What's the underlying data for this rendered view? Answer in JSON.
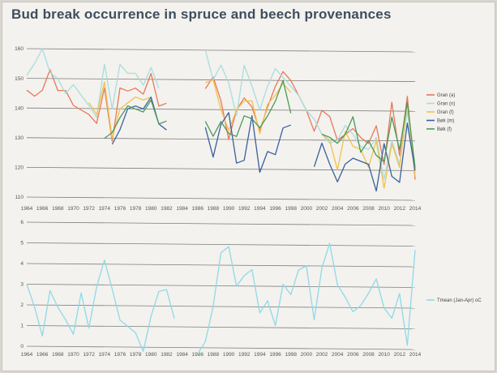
{
  "title": "Bud break occurrence in spruce and beech provenances",
  "chart_data": [
    {
      "type": "line",
      "title": "Bud break occurrence in spruce and beech provenances",
      "xlabel": "",
      "ylabel": "",
      "ylim": [
        110,
        160
      ],
      "yticks": [
        110,
        120,
        130,
        140,
        150,
        160
      ],
      "xticks": [
        1964,
        1966,
        1968,
        1970,
        1972,
        1974,
        1976,
        1978,
        1980,
        1982,
        1984,
        1986,
        1988,
        1990,
        1992,
        1994,
        1996,
        1998,
        2000,
        2002,
        2004,
        2006,
        2008,
        2010,
        2012,
        2014
      ],
      "legend_position": "right",
      "series": [
        {
          "name": "Gran (a)",
          "color": "#e8785a",
          "points": [
            [
              1964,
              146
            ],
            [
              1965,
              144
            ],
            [
              1966,
              146
            ],
            [
              1967,
              153
            ],
            [
              1968,
              146
            ],
            [
              1969,
              146
            ],
            [
              1970,
              141
            ],
            [
              1972,
              138
            ],
            [
              1973,
              135
            ],
            [
              1974,
              147
            ],
            [
              1975,
              129
            ],
            [
              1976,
              147
            ],
            [
              1977,
              146
            ],
            [
              1978,
              147
            ],
            [
              1979,
              145
            ],
            [
              1980,
              152
            ],
            [
              1981,
              141
            ],
            [
              1982,
              142
            ],
            [
              1987,
              147
            ],
            [
              1988,
              151
            ],
            [
              1989,
              143
            ],
            [
              1990,
              130
            ],
            [
              1991,
              140
            ],
            [
              1992,
              144
            ],
            [
              1993,
              141
            ],
            [
              1994,
              133
            ],
            [
              1995,
              141
            ],
            [
              1996,
              148
            ],
            [
              1997,
              153
            ],
            [
              1998,
              150
            ],
            [
              1999,
              145
            ],
            [
              2000,
              140
            ],
            [
              2001,
              133
            ],
            [
              2002,
              140
            ],
            [
              2003,
              138
            ],
            [
              2004,
              130
            ],
            [
              2005,
              132
            ],
            [
              2006,
              134
            ],
            [
              2007,
              131
            ],
            [
              2008,
              129
            ],
            [
              2009,
              135
            ],
            [
              2010,
              122
            ],
            [
              2011,
              143
            ],
            [
              2012,
              125
            ],
            [
              2013,
              145
            ],
            [
              2014,
              117
            ]
          ]
        },
        {
          "name": "Gran (n)",
          "color": "#a8dde0",
          "points": [
            [
              1964,
              151
            ],
            [
              1965,
              155
            ],
            [
              1966,
              160
            ],
            [
              1967,
              152
            ],
            [
              1968,
              150
            ],
            [
              1969,
              145
            ],
            [
              1970,
              148
            ],
            [
              1972,
              141
            ],
            [
              1973,
              137
            ],
            [
              1974,
              155
            ],
            [
              1975,
              140
            ],
            [
              1976,
              155
            ],
            [
              1977,
              152
            ],
            [
              1978,
              152
            ],
            [
              1979,
              148
            ],
            [
              1980,
              154
            ],
            [
              1981,
              147
            ],
            [
              1987,
              160
            ],
            [
              1988,
              150
            ],
            [
              1989,
              155
            ],
            [
              1990,
              149
            ],
            [
              1991,
              138
            ],
            [
              1992,
              155
            ],
            [
              1993,
              148
            ],
            [
              1994,
              140
            ],
            [
              1995,
              148
            ],
            [
              1996,
              154
            ],
            [
              1997,
              151
            ],
            [
              1998,
              148
            ],
            [
              1999,
              145
            ],
            [
              2000,
              140
            ],
            [
              2001,
              137
            ],
            [
              2002,
              132
            ],
            [
              2003,
              129
            ],
            [
              2004,
              130
            ],
            [
              2005,
              135
            ],
            [
              2006,
              132
            ],
            [
              2007,
              128
            ],
            [
              2008,
              127
            ],
            [
              2009,
              131
            ],
            [
              2010,
              117
            ],
            [
              2011,
              130
            ],
            [
              2012,
              122
            ],
            [
              2013,
              140
            ],
            [
              2014,
              119
            ]
          ]
        },
        {
          "name": "Gran (f)",
          "color": "#f2c14b",
          "points": [
            [
              1972,
              142
            ],
            [
              1973,
              138
            ],
            [
              1974,
              149
            ],
            [
              1975,
              130
            ],
            [
              1976,
              140
            ],
            [
              1977,
              142
            ],
            [
              1978,
              144
            ],
            [
              1979,
              143
            ],
            [
              1980,
              144
            ],
            [
              1987,
              149
            ],
            [
              1988,
              150
            ],
            [
              1989,
              140
            ],
            [
              1990,
              133
            ],
            [
              1991,
              140
            ],
            [
              1992,
              143
            ],
            [
              1993,
              143
            ],
            [
              1994,
              132
            ],
            [
              1995,
              142
            ],
            [
              1996,
              145
            ],
            [
              1997,
              149
            ],
            [
              1998,
              146
            ],
            [
              2002,
              132
            ],
            [
              2003,
              130
            ],
            [
              2004,
              120
            ],
            [
              2005,
              133
            ],
            [
              2006,
              128
            ],
            [
              2007,
              127
            ],
            [
              2008,
              121
            ],
            [
              2009,
              130
            ],
            [
              2010,
              114
            ],
            [
              2011,
              129
            ],
            [
              2012,
              121
            ],
            [
              2013,
              143
            ],
            [
              2014,
              118
            ]
          ]
        },
        {
          "name": "Bøk (m)",
          "color": "#3a5f9c",
          "points": [
            [
              1975,
              128
            ],
            [
              1976,
              133
            ],
            [
              1977,
              140
            ],
            [
              1978,
              141
            ],
            [
              1979,
              140
            ],
            [
              1980,
              144
            ],
            [
              1981,
              135
            ],
            [
              1982,
              133
            ],
            [
              1987,
              134
            ],
            [
              1988,
              124
            ],
            [
              1989,
              135
            ],
            [
              1990,
              139
            ],
            [
              1991,
              122
            ],
            [
              1992,
              123
            ],
            [
              1993,
              138
            ],
            [
              1994,
              119
            ],
            [
              1995,
              126
            ],
            [
              1996,
              125
            ],
            [
              1997,
              134
            ],
            [
              1998,
              135
            ],
            [
              2001,
              121
            ],
            [
              2002,
              129
            ],
            [
              2003,
              122
            ],
            [
              2004,
              116
            ],
            [
              2005,
              122
            ],
            [
              2006,
              124
            ],
            [
              2007,
              123
            ],
            [
              2008,
              122
            ],
            [
              2009,
              113
            ],
            [
              2010,
              129
            ],
            [
              2011,
              118
            ],
            [
              2012,
              116
            ],
            [
              2013,
              136
            ],
            [
              2014,
              120
            ]
          ]
        },
        {
          "name": "Bøk (f)",
          "color": "#4a9a5a",
          "points": [
            [
              1974,
              130
            ],
            [
              1975,
              132
            ],
            [
              1976,
              137
            ],
            [
              1977,
              141
            ],
            [
              1978,
              140
            ],
            [
              1979,
              139
            ],
            [
              1980,
              143
            ],
            [
              1981,
              135
            ],
            [
              1982,
              136
            ],
            [
              1987,
              136
            ],
            [
              1988,
              131
            ],
            [
              1989,
              136
            ],
            [
              1990,
              132
            ],
            [
              1991,
              131
            ],
            [
              1992,
              138
            ],
            [
              1993,
              137
            ],
            [
              1994,
              134
            ],
            [
              1995,
              138
            ],
            [
              1996,
              143
            ],
            [
              1997,
              150
            ],
            [
              1998,
              139
            ],
            [
              2002,
              132
            ],
            [
              2003,
              131
            ],
            [
              2004,
              129
            ],
            [
              2005,
              132
            ],
            [
              2006,
              138
            ],
            [
              2007,
              126
            ],
            [
              2008,
              130
            ],
            [
              2009,
              125
            ],
            [
              2010,
              123
            ],
            [
              2011,
              138
            ],
            [
              2012,
              127
            ],
            [
              2013,
              143
            ],
            [
              2014,
              121
            ]
          ]
        }
      ]
    },
    {
      "type": "line",
      "title": "",
      "xlabel": "",
      "ylabel": "",
      "ylim": [
        0,
        6
      ],
      "yticks": [
        0,
        1,
        2,
        3,
        4,
        5,
        6
      ],
      "xticks": [
        1964,
        1966,
        1968,
        1970,
        1972,
        1974,
        1976,
        1978,
        1980,
        1982,
        1984,
        1986,
        1988,
        1990,
        1992,
        1994,
        1996,
        1998,
        2000,
        2002,
        2004,
        2006,
        2008,
        2010,
        2012,
        2014
      ],
      "legend_position": "right",
      "series": [
        {
          "name": "Tmean (Jan-Apr) oC",
          "color": "#8fd9e8",
          "points": [
            [
              1964,
              3.0
            ],
            [
              1965,
              1.9
            ],
            [
              1966,
              0.5
            ],
            [
              1967,
              2.7
            ],
            [
              1968,
              1.9
            ],
            [
              1969,
              1.3
            ],
            [
              1970,
              0.6
            ],
            [
              1971,
              2.6
            ],
            [
              1972,
              0.9
            ],
            [
              1973,
              2.9
            ],
            [
              1974,
              4.2
            ],
            [
              1975,
              2.8
            ],
            [
              1976,
              1.3
            ],
            [
              1977,
              1.0
            ],
            [
              1978,
              0.7
            ],
            [
              1979,
              -0.2
            ],
            [
              1980,
              1.5
            ],
            [
              1981,
              2.7
            ],
            [
              1982,
              2.8
            ],
            [
              1983,
              1.4
            ],
            [
              1986,
              -0.3
            ],
            [
              1987,
              0.3
            ],
            [
              1988,
              2.0
            ],
            [
              1989,
              4.6
            ],
            [
              1990,
              4.9
            ],
            [
              1991,
              3.0
            ],
            [
              1992,
              3.5
            ],
            [
              1993,
              3.8
            ],
            [
              1994,
              1.7
            ],
            [
              1995,
              2.3
            ],
            [
              1996,
              1.1
            ],
            [
              1997,
              3.1
            ],
            [
              1998,
              2.6
            ],
            [
              1999,
              3.8
            ],
            [
              2000,
              4.0
            ],
            [
              2001,
              1.4
            ],
            [
              2002,
              3.9
            ],
            [
              2003,
              5.1
            ],
            [
              2004,
              3.1
            ],
            [
              2005,
              2.5
            ],
            [
              2006,
              1.8
            ],
            [
              2007,
              2.1
            ],
            [
              2008,
              2.7
            ],
            [
              2009,
              3.4
            ],
            [
              2010,
              2.0
            ],
            [
              2011,
              1.5
            ],
            [
              2012,
              2.7
            ],
            [
              2013,
              0.2
            ],
            [
              2014,
              4.8
            ]
          ]
        }
      ]
    }
  ]
}
